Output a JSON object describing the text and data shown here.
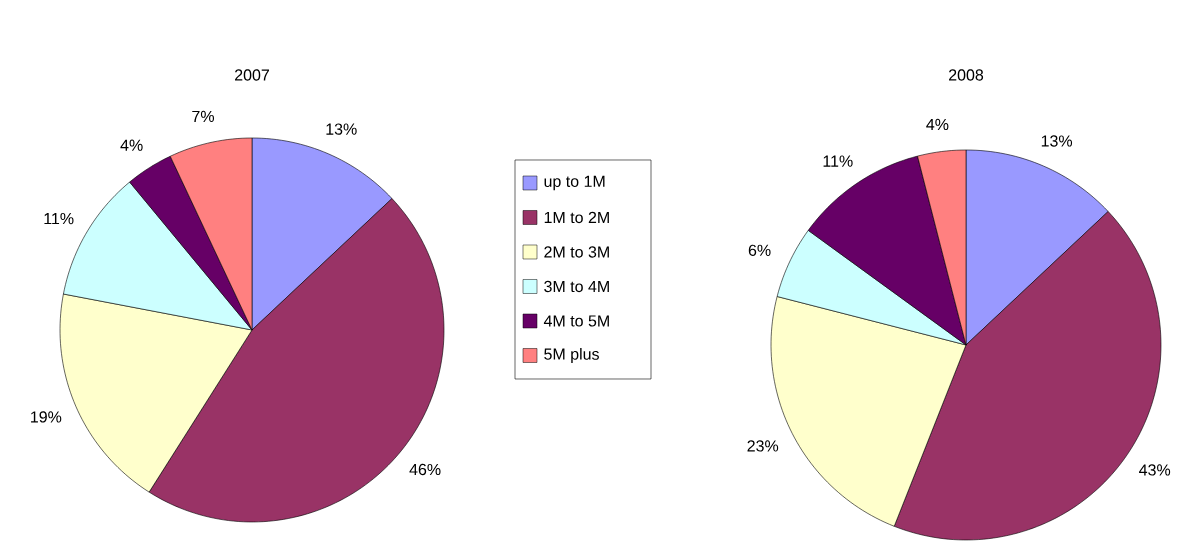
{
  "chart_data": [
    {
      "type": "pie",
      "title": "2007",
      "categories": [
        "up to 1M",
        "1M to 2M",
        "2M to 3M",
        "3M to 4M",
        "4M to 5M",
        "5M plus"
      ],
      "values": [
        13,
        46,
        19,
        11,
        4,
        7
      ],
      "value_labels": [
        "13%",
        "46%",
        "19%",
        "11%",
        "4%",
        "7%"
      ],
      "colors": [
        "#9999ff",
        "#993366",
        "#ffffcc",
        "#ccffff",
        "#660066",
        "#ff8080"
      ],
      "legend": "right"
    },
    {
      "type": "pie",
      "title": "2008",
      "categories": [
        null,
        null,
        null,
        null,
        null,
        null
      ],
      "values": [
        13,
        43,
        23,
        6,
        11,
        4
      ],
      "value_labels": [
        "13%",
        "43%",
        "23%",
        "6%",
        "11%",
        "4%"
      ],
      "colors": [
        "#9999ff",
        "#993366",
        "#ffffcc",
        "#ccffff",
        "#660066",
        "#ff8080"
      ]
    }
  ]
}
